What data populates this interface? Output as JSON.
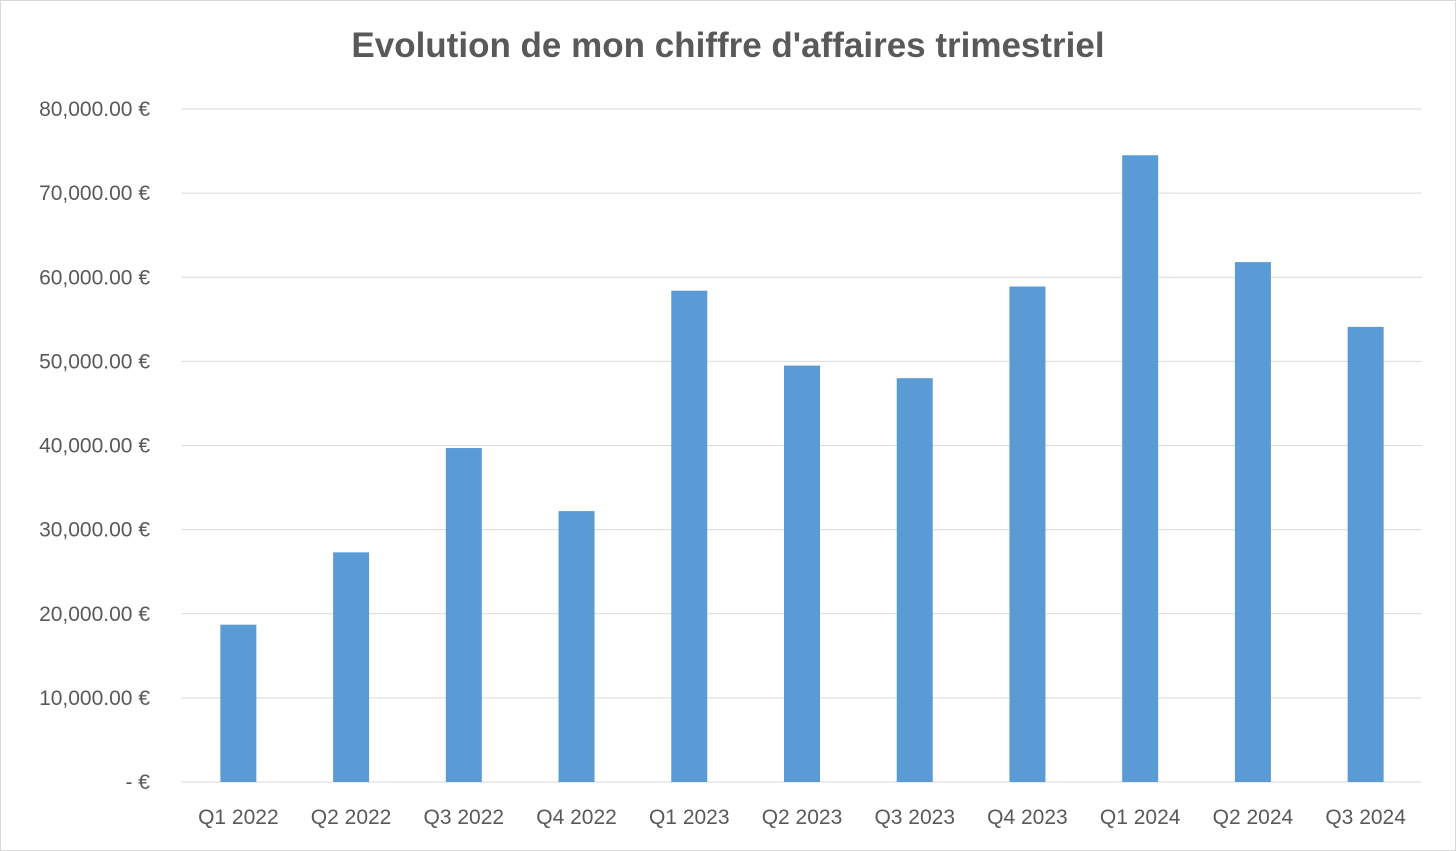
{
  "chart_data": {
    "type": "bar",
    "title": "Evolution de mon chiffre d'affaires trimestriel",
    "xlabel": "",
    "ylabel": "",
    "categories": [
      "Q1 2022",
      "Q2 2022",
      "Q3 2022",
      "Q4 2022",
      "Q1 2023",
      "Q2 2023",
      "Q3 2023",
      "Q4 2023",
      "Q1 2024",
      "Q2 2024",
      "Q3 2024"
    ],
    "values": [
      18700,
      27300,
      39700,
      32200,
      58400,
      49500,
      48000,
      58900,
      74500,
      61800,
      54100
    ],
    "ylim": [
      0,
      80000
    ],
    "y_ticks": [
      0,
      10000,
      20000,
      30000,
      40000,
      50000,
      60000,
      70000,
      80000
    ],
    "y_tick_labels": [
      "-  €",
      "10,000.00 €",
      "20,000.00 €",
      "30,000.00 €",
      "40,000.00 €",
      "50,000.00 €",
      "60,000.00 €",
      "70,000.00 €",
      "80,000.00 €"
    ],
    "grid": true,
    "legend": "none",
    "colors": {
      "bar": "#5b9bd5",
      "grid": "#d9d9d9",
      "text": "#595959"
    }
  }
}
